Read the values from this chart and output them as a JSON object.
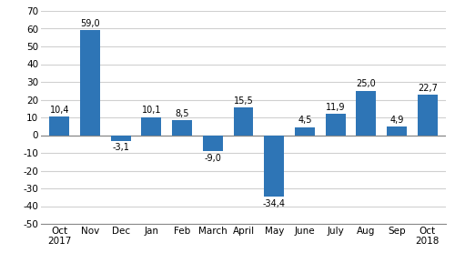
{
  "categories": [
    "Oct\n2017",
    "Nov",
    "Dec",
    "Jan",
    "Feb",
    "March",
    "April",
    "May",
    "June",
    "July",
    "Aug",
    "Sep",
    "Oct\n2018"
  ],
  "values": [
    10.4,
    59.0,
    -3.1,
    10.1,
    8.5,
    -9.0,
    15.5,
    -34.4,
    4.5,
    11.9,
    25.0,
    4.9,
    22.7
  ],
  "bar_color": "#2E75B6",
  "ylim": [
    -50,
    70
  ],
  "yticks": [
    -50,
    -40,
    -30,
    -20,
    -10,
    0,
    10,
    20,
    30,
    40,
    50,
    60,
    70
  ],
  "tick_fontsize": 7.5,
  "bar_label_fontsize": 7.0,
  "background_color": "#ffffff",
  "grid_color": "#d0d0d0"
}
